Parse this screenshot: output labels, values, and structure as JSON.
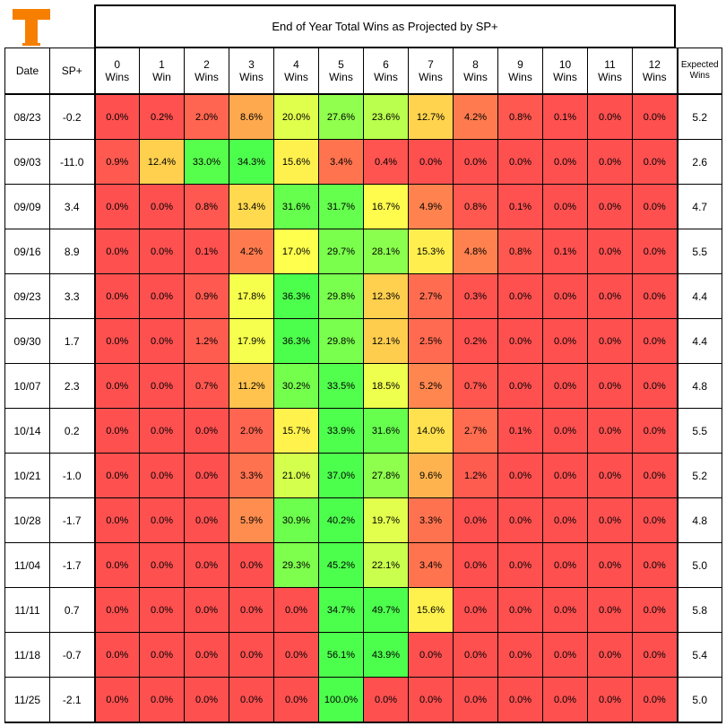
{
  "title": "End of Year Total Wins as Projected by SP+",
  "logo_color": "#F77F00",
  "headers": {
    "date": "Date",
    "sp": "SP+",
    "wins": [
      [
        "0",
        "Wins"
      ],
      [
        "1",
        "Win"
      ],
      [
        "2",
        "Wins"
      ],
      [
        "3",
        "Wins"
      ],
      [
        "4",
        "Wins"
      ],
      [
        "5",
        "Wins"
      ],
      [
        "6",
        "Wins"
      ],
      [
        "7",
        "Wins"
      ],
      [
        "8",
        "Wins"
      ],
      [
        "9",
        "Wins"
      ],
      [
        "10",
        "Wins"
      ],
      [
        "11",
        "Wins"
      ],
      [
        "12",
        "Wins"
      ]
    ],
    "expected": [
      "Expected",
      "Wins"
    ]
  },
  "chart_data": {
    "type": "heatmap",
    "title": "End of Year Total Wins as Projected by SP+",
    "columns": [
      "0 Wins",
      "1 Win",
      "2 Wins",
      "3 Wins",
      "4 Wins",
      "5 Wins",
      "6 Wins",
      "7 Wins",
      "8 Wins",
      "9 Wins",
      "10 Wins",
      "11 Wins",
      "12 Wins"
    ],
    "color_scale": {
      "low": "#FF5050",
      "mid": "#FFFF4D",
      "high": "#4DFF4D"
    },
    "rows": [
      {
        "date": "08/23",
        "sp": "-0.2",
        "probs": [
          "0.0%",
          "0.2%",
          "2.0%",
          "8.6%",
          "20.0%",
          "27.6%",
          "23.6%",
          "12.7%",
          "4.2%",
          "0.8%",
          "0.1%",
          "0.0%",
          "0.0%"
        ],
        "expected": "5.2"
      },
      {
        "date": "09/03",
        "sp": "-11.0",
        "probs": [
          "0.9%",
          "12.4%",
          "33.0%",
          "34.3%",
          "15.6%",
          "3.4%",
          "0.4%",
          "0.0%",
          "0.0%",
          "0.0%",
          "0.0%",
          "0.0%",
          "0.0%"
        ],
        "expected": "2.6"
      },
      {
        "date": "09/09",
        "sp": "3.4",
        "probs": [
          "0.0%",
          "0.0%",
          "0.8%",
          "13.4%",
          "31.6%",
          "31.7%",
          "16.7%",
          "4.9%",
          "0.8%",
          "0.1%",
          "0.0%",
          "0.0%",
          "0.0%"
        ],
        "expected": "4.7"
      },
      {
        "date": "09/16",
        "sp": "8.9",
        "probs": [
          "0.0%",
          "0.0%",
          "0.1%",
          "4.2%",
          "17.0%",
          "29.7%",
          "28.1%",
          "15.3%",
          "4.8%",
          "0.8%",
          "0.1%",
          "0.0%",
          "0.0%"
        ],
        "expected": "5.5"
      },
      {
        "date": "09/23",
        "sp": "3.3",
        "probs": [
          "0.0%",
          "0.0%",
          "0.9%",
          "17.8%",
          "36.3%",
          "29.8%",
          "12.3%",
          "2.7%",
          "0.3%",
          "0.0%",
          "0.0%",
          "0.0%",
          "0.0%"
        ],
        "expected": "4.4"
      },
      {
        "date": "09/30",
        "sp": "1.7",
        "probs": [
          "0.0%",
          "0.0%",
          "1.2%",
          "17.9%",
          "36.3%",
          "29.8%",
          "12.1%",
          "2.5%",
          "0.2%",
          "0.0%",
          "0.0%",
          "0.0%",
          "0.0%"
        ],
        "expected": "4.4"
      },
      {
        "date": "10/07",
        "sp": "2.3",
        "probs": [
          "0.0%",
          "0.0%",
          "0.7%",
          "11.2%",
          "30.2%",
          "33.5%",
          "18.5%",
          "5.2%",
          "0.7%",
          "0.0%",
          "0.0%",
          "0.0%",
          "0.0%"
        ],
        "expected": "4.8"
      },
      {
        "date": "10/14",
        "sp": "0.2",
        "probs": [
          "0.0%",
          "0.0%",
          "0.0%",
          "2.0%",
          "15.7%",
          "33.9%",
          "31.6%",
          "14.0%",
          "2.7%",
          "0.1%",
          "0.0%",
          "0.0%",
          "0.0%"
        ],
        "expected": "5.5"
      },
      {
        "date": "10/21",
        "sp": "-1.0",
        "probs": [
          "0.0%",
          "0.0%",
          "0.0%",
          "3.3%",
          "21.0%",
          "37.0%",
          "27.8%",
          "9.6%",
          "1.2%",
          "0.0%",
          "0.0%",
          "0.0%",
          "0.0%"
        ],
        "expected": "5.2"
      },
      {
        "date": "10/28",
        "sp": "-1.7",
        "probs": [
          "0.0%",
          "0.0%",
          "0.0%",
          "5.9%",
          "30.9%",
          "40.2%",
          "19.7%",
          "3.3%",
          "0.0%",
          "0.0%",
          "0.0%",
          "0.0%",
          "0.0%"
        ],
        "expected": "4.8"
      },
      {
        "date": "11/04",
        "sp": "-1.7",
        "probs": [
          "0.0%",
          "0.0%",
          "0.0%",
          "0.0%",
          "29.3%",
          "45.2%",
          "22.1%",
          "3.4%",
          "0.0%",
          "0.0%",
          "0.0%",
          "0.0%",
          "0.0%"
        ],
        "expected": "5.0"
      },
      {
        "date": "11/11",
        "sp": "0.7",
        "probs": [
          "0.0%",
          "0.0%",
          "0.0%",
          "0.0%",
          "0.0%",
          "34.7%",
          "49.7%",
          "15.6%",
          "0.0%",
          "0.0%",
          "0.0%",
          "0.0%",
          "0.0%"
        ],
        "expected": "5.8"
      },
      {
        "date": "11/18",
        "sp": "-0.7",
        "probs": [
          "0.0%",
          "0.0%",
          "0.0%",
          "0.0%",
          "0.0%",
          "56.1%",
          "43.9%",
          "0.0%",
          "0.0%",
          "0.0%",
          "0.0%",
          "0.0%",
          "0.0%"
        ],
        "expected": "5.4"
      },
      {
        "date": "11/25",
        "sp": "-2.1",
        "probs": [
          "0.0%",
          "0.0%",
          "0.0%",
          "0.0%",
          "0.0%",
          "100.0%",
          "0.0%",
          "0.0%",
          "0.0%",
          "0.0%",
          "0.0%",
          "0.0%",
          "0.0%"
        ],
        "expected": "5.0"
      }
    ]
  }
}
